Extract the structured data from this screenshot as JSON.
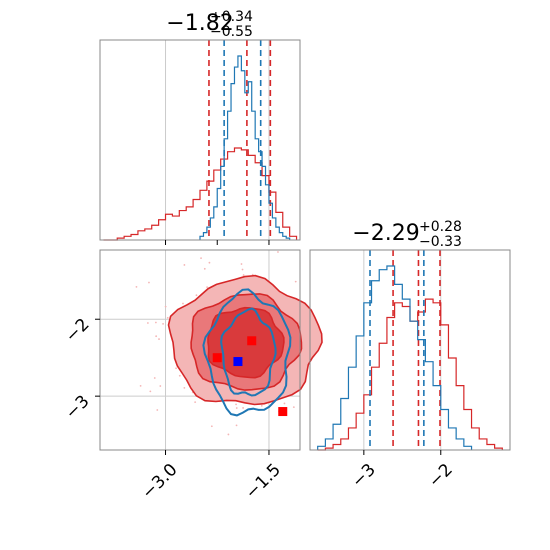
{
  "colors": {
    "red": "#d62728",
    "blue": "#1f77b4",
    "red_fill_light": "#f4b6b6",
    "red_fill_mid": "#e9787a",
    "red_fill_dark": "#d93a3c",
    "marker_red": "#ff0000",
    "marker_blue": "#0000ff"
  },
  "chart_data": [
    {
      "type": "histogram",
      "panel": "top-left",
      "title": {
        "value": "−1.82",
        "sup": "+0.34",
        "sub": "−0.55"
      },
      "xlim": [
        -3.95,
        -1.05
      ],
      "grid": true,
      "series": [
        {
          "name": "",
          "color": "#d62728",
          "bin_edges": [
            -3.9,
            -3.8,
            -3.7,
            -3.6,
            -3.5,
            -3.4,
            -3.3,
            -3.2,
            -3.1,
            -3.0,
            -2.9,
            -2.8,
            -2.7,
            -2.6,
            -2.5,
            -2.4,
            -2.3,
            -2.2,
            -2.1,
            -2.0,
            -1.9,
            -1.8,
            -1.7,
            -1.6,
            -1.5,
            -1.4,
            -1.3,
            -1.2,
            -1.1
          ],
          "counts": [
            0.0,
            0.0,
            0.01,
            0.02,
            0.03,
            0.05,
            0.06,
            0.08,
            0.11,
            0.14,
            0.13,
            0.16,
            0.18,
            0.22,
            0.27,
            0.32,
            0.38,
            0.44,
            0.48,
            0.5,
            0.49,
            0.46,
            0.42,
            0.35,
            0.26,
            0.15,
            0.07,
            0.02
          ],
          "quantiles": [
            -2.37,
            -1.82,
            -1.48
          ]
        },
        {
          "name": "",
          "color": "#1f77b4",
          "bin_edges": [
            -2.5,
            -2.45,
            -2.4,
            -2.35,
            -2.3,
            -2.25,
            -2.2,
            -2.15,
            -2.1,
            -2.05,
            -2.0,
            -1.95,
            -1.9,
            -1.85,
            -1.8,
            -1.75,
            -1.7,
            -1.65,
            -1.6,
            -1.55,
            -1.5,
            -1.45,
            -1.4,
            -1.35,
            -1.3,
            -1.25,
            -1.2
          ],
          "counts": [
            0.02,
            0.04,
            0.07,
            0.12,
            0.18,
            0.28,
            0.4,
            0.55,
            0.7,
            0.85,
            0.94,
            1.0,
            0.92,
            0.8,
            0.86,
            0.7,
            0.55,
            0.48,
            0.4,
            0.3,
            0.2,
            0.12,
            0.07,
            0.04,
            0.02,
            0.01
          ],
          "quantiles": [
            -2.15,
            -1.62
          ]
        }
      ]
    },
    {
      "type": "contour",
      "panel": "bottom-left",
      "xlim": [
        -3.95,
        -1.05
      ],
      "ylim": [
        -3.7,
        -1.1
      ],
      "xticks": [
        "−3.0",
        "−1.5"
      ],
      "xtick_values": [
        -3.0,
        -1.5
      ],
      "yticks": [
        "−2",
        "−3"
      ],
      "ytick_values": [
        -2,
        -3
      ],
      "grid": true,
      "series": [
        {
          "name": "",
          "color": "#d62728",
          "filled": true,
          "center": [
            -1.85,
            -2.3
          ],
          "radii": [
            [
              0.55,
              0.45
            ],
            [
              0.8,
              0.62
            ],
            [
              1.08,
              0.82
            ]
          ]
        },
        {
          "name": "",
          "color": "#1f77b4",
          "filled": false,
          "center": [
            -1.8,
            -2.45
          ],
          "radii": [
            [
              0.38,
              0.55
            ],
            [
              0.6,
              0.78
            ]
          ]
        }
      ],
      "markers": [
        {
          "color": "#ff0000",
          "x": -2.25,
          "y": -2.5
        },
        {
          "color": "#ff0000",
          "x": -1.75,
          "y": -2.28
        },
        {
          "color": "#ff0000",
          "x": -1.3,
          "y": -3.2
        },
        {
          "color": "#0000ff",
          "x": -1.95,
          "y": -2.55
        }
      ]
    },
    {
      "type": "histogram",
      "panel": "bottom-right",
      "title": {
        "value": "−2.29",
        "sup": "+0.28",
        "sub": "−0.33"
      },
      "xlim": [
        -3.7,
        -1.1
      ],
      "xticks": [
        "−3",
        "−2"
      ],
      "xtick_values": [
        -3,
        -2
      ],
      "grid": true,
      "series": [
        {
          "name": "",
          "color": "#d62728",
          "bin_edges": [
            -3.6,
            -3.5,
            -3.4,
            -3.3,
            -3.2,
            -3.1,
            -3.0,
            -2.9,
            -2.8,
            -2.7,
            -2.6,
            -2.5,
            -2.4,
            -2.3,
            -2.2,
            -2.1,
            -2.0,
            -1.9,
            -1.8,
            -1.7,
            -1.6,
            -1.5,
            -1.4,
            -1.3,
            -1.2
          ],
          "counts": [
            0.0,
            0.01,
            0.03,
            0.06,
            0.12,
            0.2,
            0.3,
            0.45,
            0.58,
            0.72,
            0.8,
            0.78,
            0.7,
            0.75,
            0.82,
            0.8,
            0.68,
            0.5,
            0.35,
            0.22,
            0.12,
            0.06,
            0.03,
            0.01
          ],
          "quantiles": [
            -2.62,
            -2.29,
            -2.01
          ]
        },
        {
          "name": "",
          "color": "#1f77b4",
          "bin_edges": [
            -3.6,
            -3.5,
            -3.4,
            -3.3,
            -3.2,
            -3.1,
            -3.0,
            -2.9,
            -2.8,
            -2.7,
            -2.6,
            -2.5,
            -2.4,
            -2.3,
            -2.2,
            -2.1,
            -2.0,
            -1.9,
            -1.8,
            -1.7,
            -1.6
          ],
          "counts": [
            0.02,
            0.06,
            0.14,
            0.28,
            0.45,
            0.62,
            0.8,
            0.92,
            0.98,
            1.0,
            0.9,
            0.82,
            0.7,
            0.6,
            0.48,
            0.35,
            0.22,
            0.12,
            0.06,
            0.02
          ],
          "quantiles": [
            -2.92,
            -2.22
          ]
        }
      ]
    }
  ]
}
